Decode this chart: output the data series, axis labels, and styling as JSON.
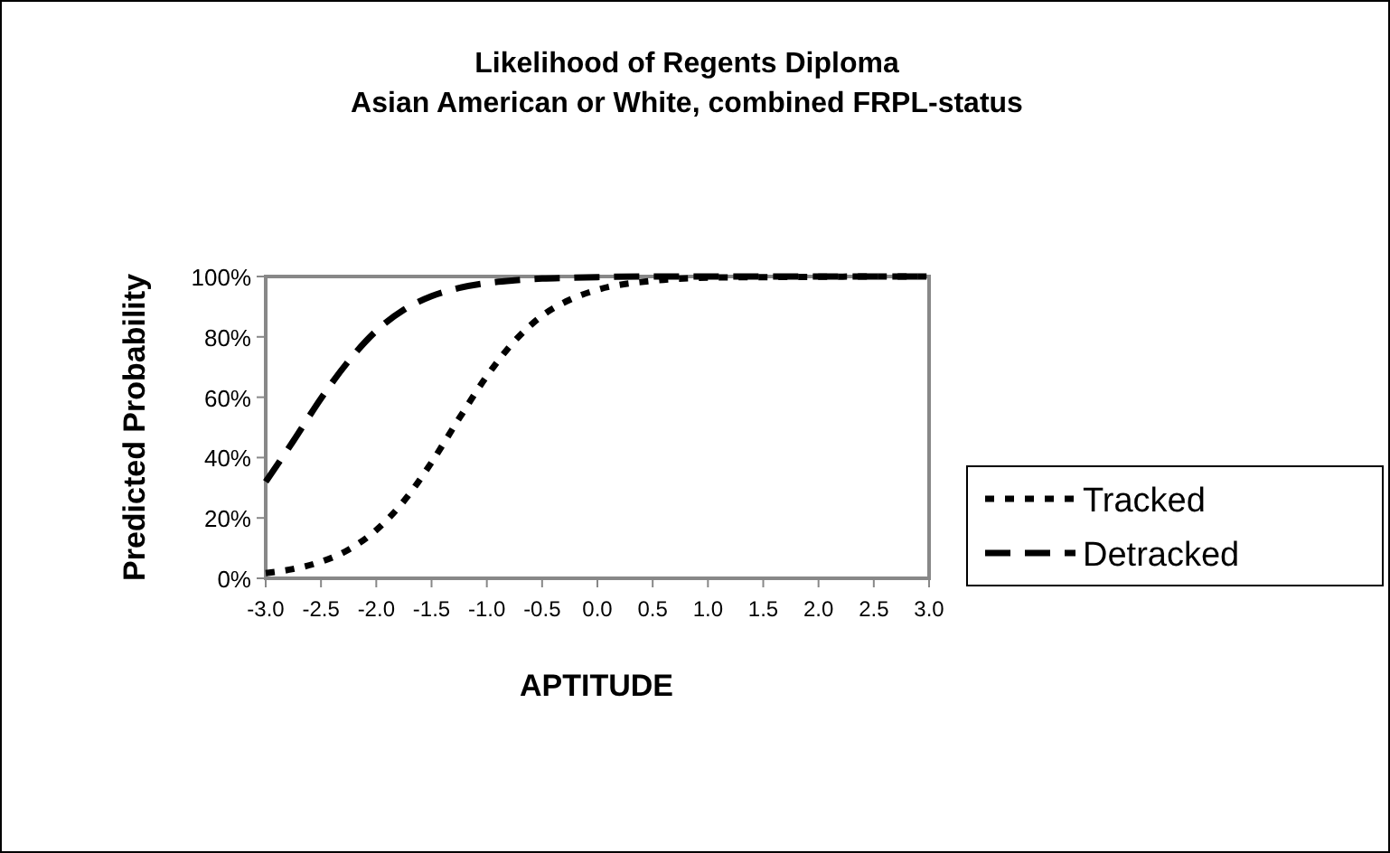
{
  "chart_data": {
    "type": "line",
    "title": "Likelihood of Regents Diploma",
    "subtitle": "Asian American or White, combined FRPL-status",
    "xlabel": "APTITUDE",
    "ylabel": "Predicted Probability",
    "x": [
      -3,
      -2.75,
      -2.5,
      -2.25,
      -2,
      -1.75,
      -1.5,
      -1.25,
      -1,
      -0.75,
      -0.5,
      -0.25,
      0,
      0.5,
      1,
      1.5,
      2,
      2.5,
      3
    ],
    "series": [
      {
        "name": "Tracked",
        "color": "#000000",
        "line_style": "dotted",
        "values": [
          1.7,
          3.1,
          5.5,
          9.5,
          16,
          25.6,
          38.4,
          53,
          67,
          78.6,
          87,
          92.3,
          95.6,
          98.6,
          99.6,
          99.8,
          99.9,
          100,
          100
        ]
      },
      {
        "name": "Detracked",
        "color": "#000000",
        "line_style": "dashed",
        "values": [
          32,
          45.5,
          59.6,
          72,
          82,
          89,
          93.5,
          96.2,
          97.8,
          98.7,
          99.3,
          99.6,
          99.8,
          100,
          100,
          100,
          100,
          100,
          100
        ]
      }
    ],
    "xlim": [
      -3,
      3
    ],
    "xticks": [
      {
        "value": -3,
        "label": "-3.0"
      },
      {
        "value": -2.5,
        "label": "-2.5"
      },
      {
        "value": -2,
        "label": "-2.0"
      },
      {
        "value": -1.5,
        "label": "-1.5"
      },
      {
        "value": -1,
        "label": "-1.0"
      },
      {
        "value": -0.5,
        "label": "-0.5"
      },
      {
        "value": 0,
        "label": "0.0"
      },
      {
        "value": 0.5,
        "label": "0.5"
      },
      {
        "value": 1,
        "label": "1.0"
      },
      {
        "value": 1.5,
        "label": "1.5"
      },
      {
        "value": 2,
        "label": "2.0"
      },
      {
        "value": 2.5,
        "label": "2.5"
      },
      {
        "value": 3,
        "label": "3.0"
      }
    ],
    "ylim": [
      0,
      100
    ],
    "yticks": [
      {
        "value": 0,
        "label": "0%"
      },
      {
        "value": 20,
        "label": "20%"
      },
      {
        "value": 40,
        "label": "40%"
      },
      {
        "value": 60,
        "label": "60%"
      },
      {
        "value": 80,
        "label": "80%"
      },
      {
        "value": 100,
        "label": "100%"
      }
    ],
    "grid": false,
    "legend": "right",
    "marker": "none"
  }
}
